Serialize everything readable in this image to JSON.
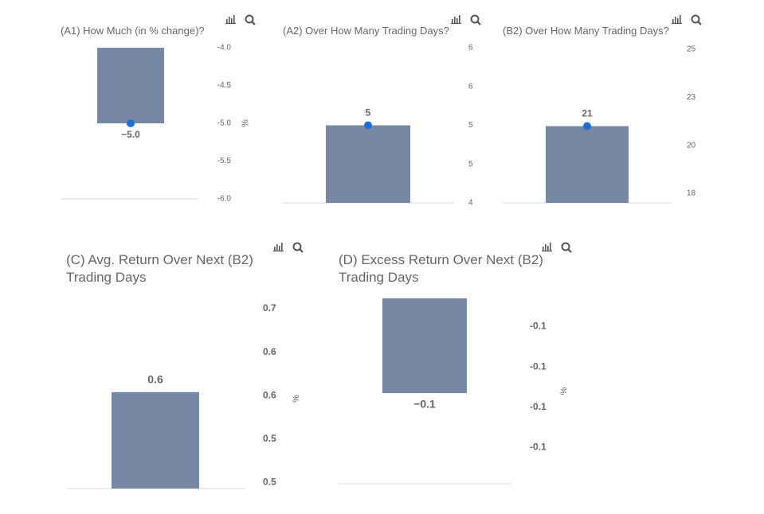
{
  "chart_data": [
    {
      "type": "bar",
      "title": "(A1) How Much (in % change)?",
      "values": [
        -5.0
      ],
      "value_labels": [
        "−5.0"
      ],
      "color": "#7788a4",
      "markers": true,
      "ylim": [
        -6,
        -4
      ],
      "yticks": [
        {
          "value": -4,
          "label": "-4.0"
        },
        -4.5,
        {
          "value": -5,
          "label": "-5.0"
        },
        -5.5,
        {
          "value": -6,
          "label": "-6.0"
        }
      ],
      "y_label": "%"
    },
    {
      "type": "bar",
      "title": "(A2) Over How Many Trading Days?",
      "values": [
        5
      ],
      "value_labels": [
        "5"
      ],
      "color": "#7788a4",
      "markers": true,
      "ylim": [
        4,
        6
      ],
      "yticks": [
        6,
        {
          "value": 5.5,
          "label": "6"
        },
        5,
        {
          "value": 4.5,
          "label": "5"
        },
        4
      ]
    },
    {
      "type": "bar",
      "title": "(B2) Over How Many Trading Days?",
      "values": [
        21
      ],
      "value_labels": [
        "21"
      ],
      "color": "#7788a4",
      "markers": true,
      "ylim": [
        17,
        25
      ],
      "yticks": [
        25,
        {
          "value": 22.5,
          "label": "23"
        },
        20,
        {
          "value": 17.5,
          "label": "18"
        }
      ]
    },
    {
      "type": "bar",
      "title": "(C) Avg. Return Over Next (B2) Trading Days",
      "values": [
        0.604
      ],
      "value_labels": [
        "0.6"
      ],
      "color": "#7788a4",
      "markers": false,
      "ylim": [
        0.493,
        0.7
      ],
      "yticks": [
        0.7,
        {
          "value": 0.65,
          "label": "0.6"
        },
        0.6,
        {
          "value": 0.55,
          "label": "0.5"
        },
        0.5
      ],
      "y_label": "%"
    },
    {
      "type": "bar",
      "title": "(D) Excess Return Over Next (B2) Trading Days",
      "values": [
        -0.093
      ],
      "value_labels": [
        "−0.1"
      ],
      "color": "#7788a4",
      "markers": false,
      "ylim": [
        -0.138,
        -0.046
      ],
      "yticks": [
        {
          "value": -0.06,
          "label": "-0.1"
        },
        {
          "value": -0.08,
          "label": "-0.1"
        },
        -0.1,
        {
          "value": -0.12,
          "label": "-0.1"
        }
      ],
      "y_label": "%"
    }
  ]
}
